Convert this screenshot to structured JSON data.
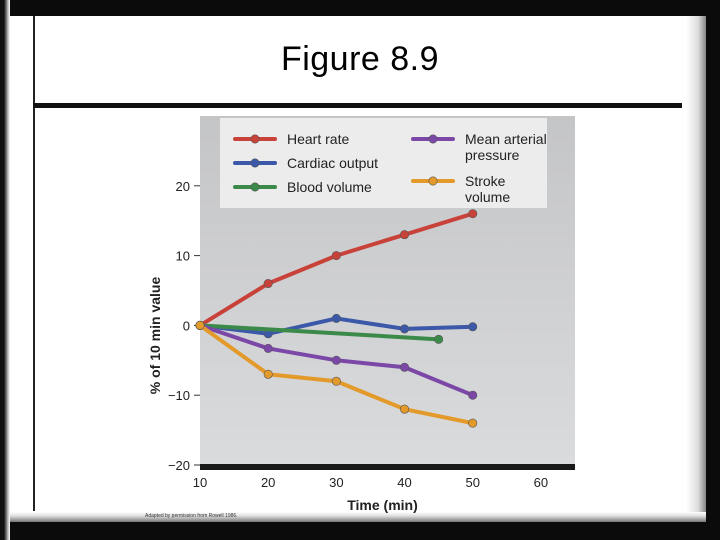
{
  "slide": {
    "title": "Figure 8.9"
  },
  "chart_data": {
    "type": "line",
    "xlabel": "Time (min)",
    "ylabel": "% of 10 min value",
    "xlim": [
      10,
      65
    ],
    "ylim": [
      -20,
      30
    ],
    "x_ticks": [
      10,
      20,
      30,
      40,
      50,
      60
    ],
    "y_ticks": [
      -20,
      -10,
      0,
      10,
      20
    ],
    "grid": false,
    "legend_position": "top",
    "series": [
      {
        "name": "Heart rate",
        "color": "#c8423a",
        "x": [
          10,
          20,
          30,
          40,
          50
        ],
        "y": [
          0,
          6,
          10,
          13,
          16
        ]
      },
      {
        "name": "Cardiac output",
        "color": "#3c58a8",
        "x": [
          10,
          20,
          30,
          40,
          50
        ],
        "y": [
          0,
          -1.2,
          1,
          -0.5,
          -0.2
        ]
      },
      {
        "name": "Blood volume",
        "color": "#3c8a4a",
        "x": [
          10,
          45
        ],
        "y": [
          0,
          -2
        ]
      },
      {
        "name": "Mean arterial pressure",
        "color": "#7b48a8",
        "x": [
          10,
          20,
          30,
          40,
          50
        ],
        "y": [
          0,
          -3.3,
          -5,
          -6,
          -10
        ]
      },
      {
        "name": "Stroke volume",
        "color": "#e39a2a",
        "x": [
          10,
          20,
          30,
          40,
          50
        ],
        "y": [
          0,
          -7,
          -8,
          -12,
          -14
        ]
      }
    ],
    "legend_labels": [
      {
        "lines": [
          "Heart rate"
        ]
      },
      {
        "lines": [
          "Cardiac output"
        ]
      },
      {
        "lines": [
          "Blood volume"
        ]
      },
      {
        "lines": [
          "Mean arterial",
          "pressure"
        ]
      },
      {
        "lines": [
          "Stroke",
          "volume"
        ]
      }
    ],
    "source_note": "Adapted by permission from Rowell 1986."
  }
}
